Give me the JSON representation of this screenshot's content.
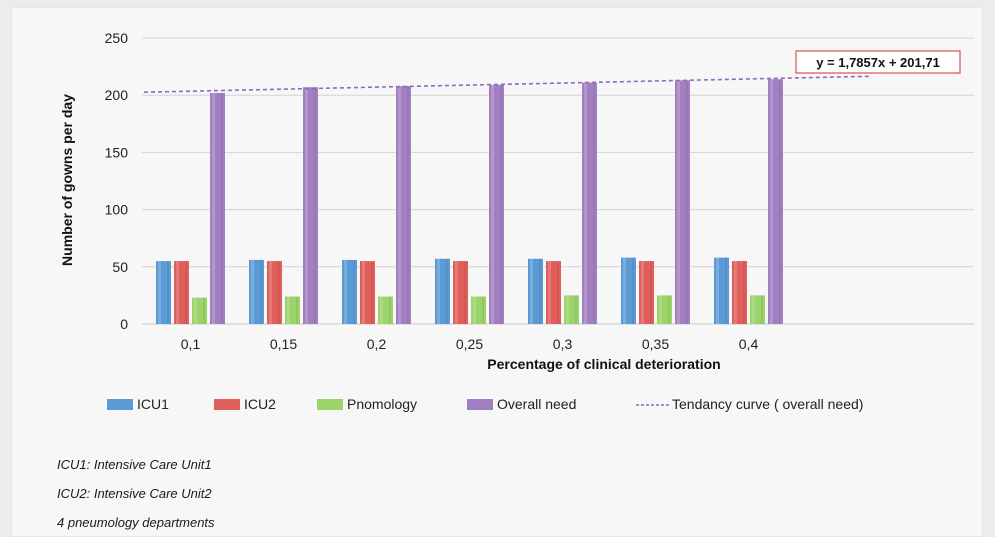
{
  "chart_data": {
    "type": "bar",
    "title": "",
    "xlabel": "Percentage of clinical deterioration",
    "ylabel": "Number of gowns per day",
    "categories": [
      "0,1",
      "0,15",
      "0,2",
      "0,25",
      "0,3",
      "0,35",
      "0,4"
    ],
    "ylim": [
      0,
      250
    ],
    "yticks": [
      "0",
      "50",
      "100",
      "150",
      "200",
      "250"
    ],
    "grid": "horizontal",
    "series": [
      {
        "name": "ICU1",
        "values": [
          55,
          56,
          56,
          57,
          57,
          58,
          58
        ],
        "color": "#5b9bd5"
      },
      {
        "name": "ICU2",
        "values": [
          55,
          55,
          55,
          55,
          55,
          55,
          55
        ],
        "color": "#e05f5b"
      },
      {
        "name": "Pnomology",
        "values": [
          23,
          24,
          24,
          24,
          25,
          25,
          25
        ],
        "color": "#9bd46a"
      },
      {
        "name": "Overall need",
        "values": [
          202,
          207,
          208,
          209,
          211,
          213,
          214
        ],
        "color": "#a27fc1"
      }
    ],
    "trendline": {
      "name": "Tendancy curve ( overall need)",
      "equation": "y = 1,7857x + 201,71",
      "slope": 1.7857,
      "intercept": 201.71,
      "x_range": [
        0.5,
        8.3
      ],
      "color": "#8a6bbf"
    },
    "legend_position": "bottom"
  },
  "notes": [
    "ICU1: Intensive Care Unit1",
    "ICU2: Intensive Care Unit2",
    "4 pneumology departments"
  ]
}
